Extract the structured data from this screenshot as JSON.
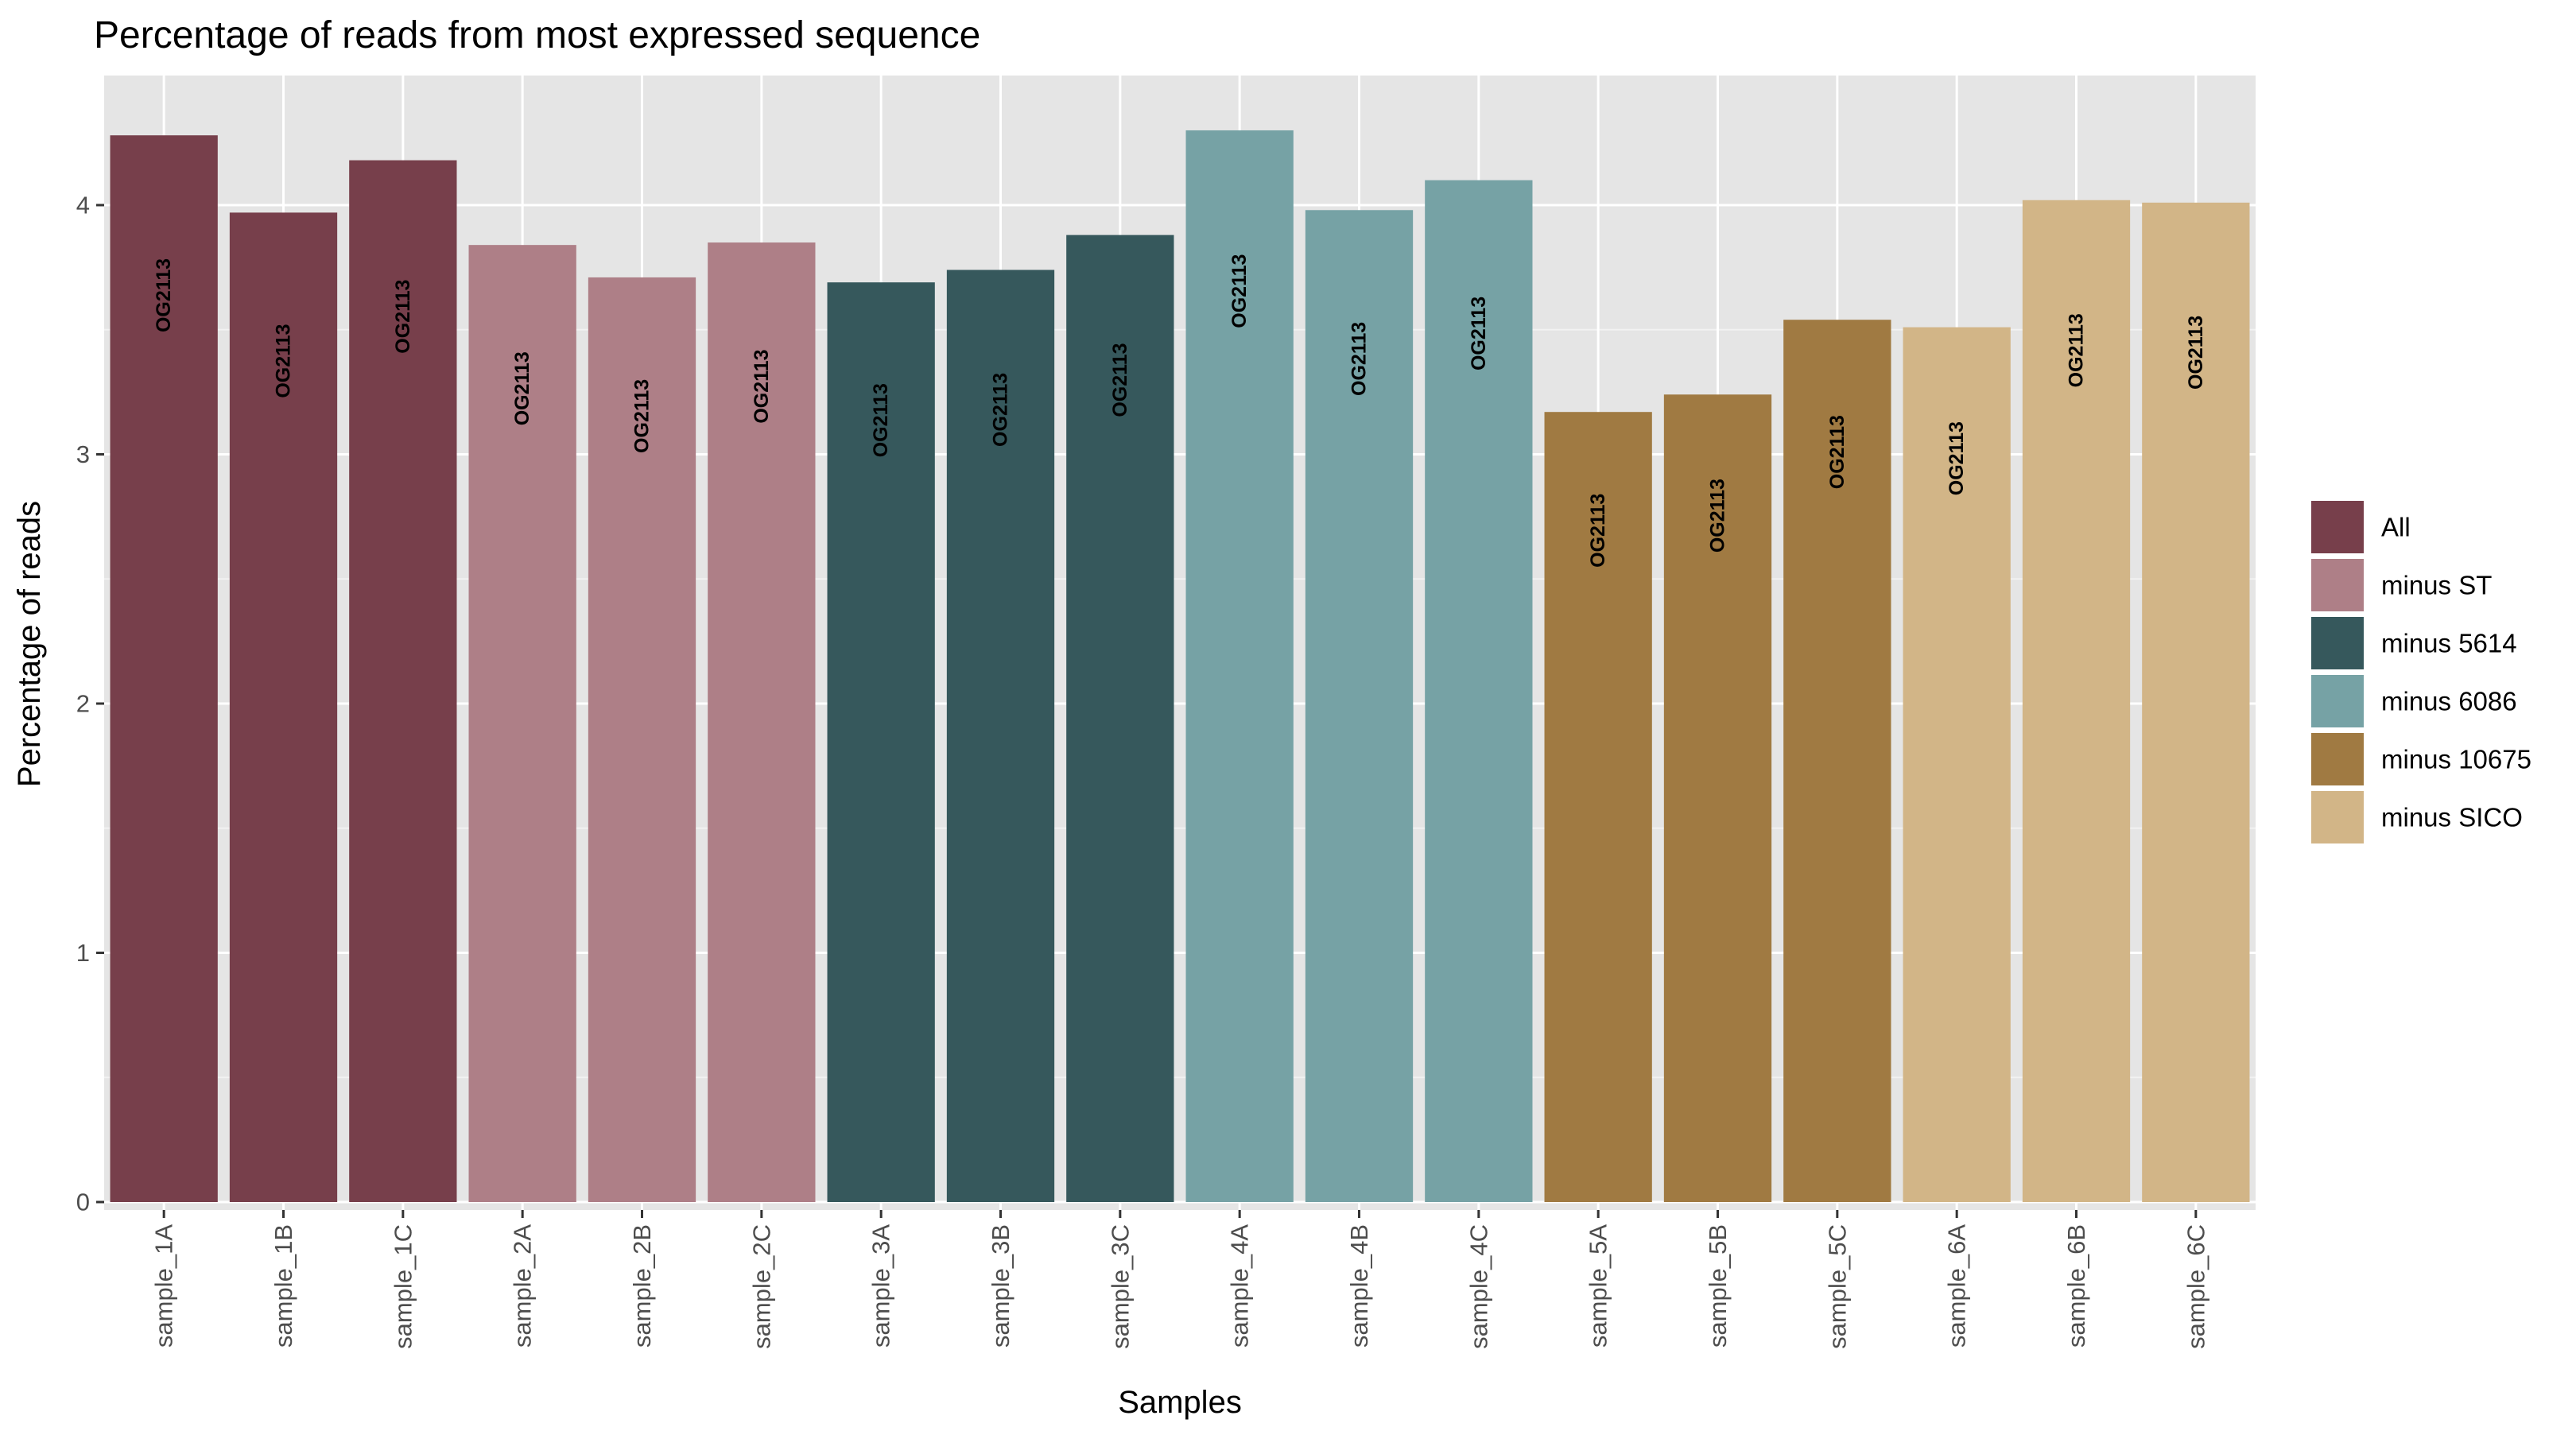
{
  "chart_data": {
    "type": "bar",
    "title": "Percentage of reads from most expressed sequence",
    "xlabel": "Samples",
    "ylabel": "Percentage of reads",
    "ylim": [
      0,
      4.5
    ],
    "yticks": [
      "0",
      "1",
      "2",
      "3",
      "4"
    ],
    "grid": true,
    "legend_position": "right",
    "categories": [
      "sample_1A",
      "sample_1B",
      "sample_1C",
      "sample_2A",
      "sample_2B",
      "sample_2C",
      "sample_3A",
      "sample_3B",
      "sample_3C",
      "sample_4A",
      "sample_4B",
      "sample_4C",
      "sample_5A",
      "sample_5B",
      "sample_5C",
      "sample_6A",
      "sample_6B",
      "sample_6C"
    ],
    "values": [
      4.28,
      3.97,
      4.18,
      3.84,
      3.71,
      3.85,
      3.69,
      3.74,
      3.88,
      4.3,
      3.98,
      4.1,
      3.17,
      3.24,
      3.54,
      3.51,
      4.02,
      4.01
    ],
    "groups": [
      "All",
      "All",
      "All",
      "minus ST",
      "minus ST",
      "minus ST",
      "minus 5614",
      "minus 5614",
      "minus 5614",
      "minus 6086",
      "minus 6086",
      "minus 6086",
      "minus 10675",
      "minus 10675",
      "minus 10675",
      "minus SICO",
      "minus SICO",
      "minus SICO"
    ],
    "bar_labels": [
      "OG2113",
      "OG2113",
      "OG2113",
      "OG2113",
      "OG2113",
      "OG2113",
      "OG2113",
      "OG2113",
      "OG2113",
      "OG2113",
      "OG2113",
      "OG2113",
      "OG2113",
      "OG2113",
      "OG2113",
      "OG2113",
      "OG2113",
      "OG2113"
    ],
    "legend": [
      {
        "name": "All",
        "color": "#773F4B"
      },
      {
        "name": "minus ST",
        "color": "#AE7F87"
      },
      {
        "name": "minus 5614",
        "color": "#36585C"
      },
      {
        "name": "minus 6086",
        "color": "#76A2A5"
      },
      {
        "name": "minus 10675",
        "color": "#A07A42"
      },
      {
        "name": "minus SICO",
        "color": "#D2B587"
      }
    ],
    "colors": {
      "panel_background": "#E5E5E5",
      "grid_major": "#FFFFFF",
      "grid_minor": "#F2F2F2"
    }
  }
}
